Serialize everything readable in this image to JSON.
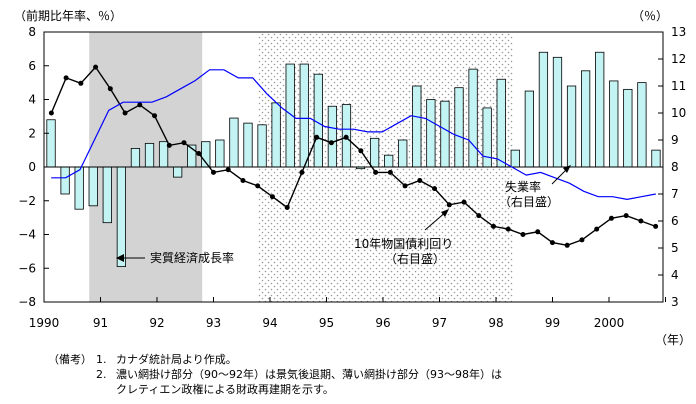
{
  "chart_data": {
    "type": "bar+line",
    "left_axis_label": "（前期比年率、％）",
    "right_axis_label": "（％）",
    "x_unit_label": "（年）",
    "left_ylim": [
      -8,
      8
    ],
    "right_ylim": [
      3,
      13
    ],
    "left_ticks": [
      "8",
      "6",
      "4",
      "2",
      "0",
      "−2",
      "−4",
      "−6",
      "−8"
    ],
    "right_ticks": [
      "13",
      "12",
      "11",
      "10",
      "9",
      "8",
      "7",
      "6",
      "5",
      "4",
      "3"
    ],
    "x_tick_labels": [
      "1990",
      "91",
      "92",
      "93",
      "94",
      "95",
      "96",
      "97",
      "98",
      "99",
      "2000"
    ],
    "series": [
      {
        "name": "実質経済成長率",
        "kind": "bar",
        "axis": "left",
        "color": "#c4f3f3",
        "values": [
          2.8,
          -1.6,
          -2.5,
          -2.3,
          -3.3,
          -5.9,
          1.1,
          1.4,
          1.5,
          -0.6,
          1.3,
          1.5,
          1.6,
          2.9,
          2.6,
          2.5,
          3.8,
          6.1,
          6.1,
          5.5,
          3.6,
          3.7,
          -0.1,
          1.7,
          0.7,
          1.6,
          4.8,
          4.0,
          3.9,
          4.7,
          5.8,
          3.5,
          5.2,
          1.0,
          4.5,
          6.8,
          6.5,
          4.8,
          5.7,
          6.8,
          5.1,
          4.6,
          5.0,
          1.0
        ]
      },
      {
        "name": "10年物国債利回り（右目盛）",
        "kind": "line",
        "axis": "right",
        "color": "#000000",
        "values": [
          10.0,
          11.3,
          11.1,
          11.7,
          10.9,
          10.0,
          10.3,
          9.9,
          8.8,
          8.9,
          8.5,
          7.8,
          7.9,
          7.5,
          7.3,
          6.9,
          6.5,
          7.8,
          9.1,
          8.9,
          9.1,
          8.6,
          7.8,
          7.8,
          7.3,
          7.5,
          7.2,
          6.6,
          6.7,
          6.2,
          5.8,
          5.7,
          5.5,
          5.6,
          5.2,
          5.1,
          5.3,
          5.7,
          6.1,
          6.2,
          6.0,
          5.8
        ]
      },
      {
        "name": "失業率（右目盛）",
        "kind": "line",
        "axis": "right",
        "color": "#0000ff",
        "values": [
          7.6,
          7.6,
          7.9,
          9.0,
          10.1,
          10.4,
          10.4,
          10.4,
          10.6,
          10.9,
          11.2,
          11.6,
          11.6,
          11.3,
          11.3,
          10.7,
          10.2,
          9.8,
          9.8,
          9.5,
          9.4,
          9.4,
          9.3,
          9.3,
          9.6,
          9.9,
          9.8,
          9.5,
          9.2,
          9.0,
          8.4,
          8.3,
          8.0,
          7.7,
          7.8,
          7.6,
          7.4,
          7.1,
          6.9,
          6.9,
          6.8,
          6.9,
          7.0
        ]
      }
    ],
    "shading": [
      {
        "type": "dark",
        "from": 0.8,
        "to": 2.8
      },
      {
        "type": "light",
        "from": 3.8,
        "to": 8.3
      }
    ],
    "annotations": [
      {
        "text": "実質経済成長率"
      },
      {
        "lines": [
          "10年物国債利回り",
          "（右目盛）"
        ]
      },
      {
        "lines": [
          "失業率",
          "（右目盛）"
        ]
      }
    ]
  },
  "notes": {
    "label": "（備考）",
    "items": [
      {
        "num": "1.",
        "text": "カナダ統計局より作成。"
      },
      {
        "num": "2.",
        "text": "濃い網掛け部分（90〜92年）は景気後退期、薄い網掛け部分（93〜98年）は"
      },
      {
        "num": "",
        "text": "クレティエン政権による財政再建期を示す。"
      }
    ]
  }
}
